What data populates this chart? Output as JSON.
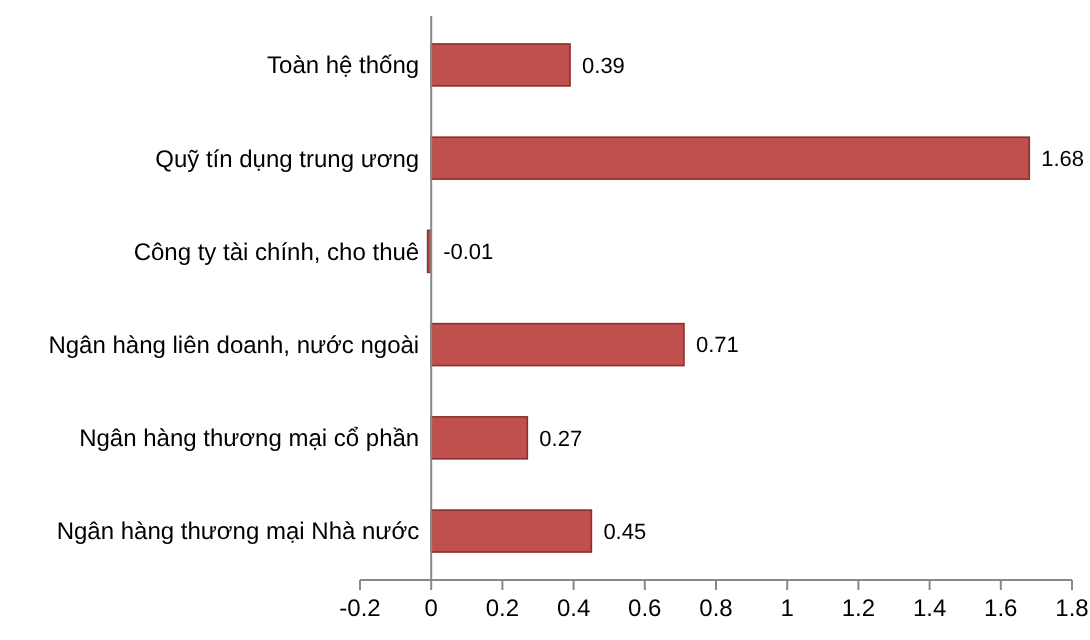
{
  "chart_data": {
    "type": "bar",
    "orientation": "horizontal",
    "categories": [
      "Toàn hệ thống",
      "Quỹ tín dụng trung ương",
      "Công ty tài chính, cho thuê",
      "Ngân hàng liên doanh, nước ngoài",
      "Ngân hàng thương mại cổ phần",
      "Ngân hàng thương mại Nhà nước"
    ],
    "values": [
      0.39,
      1.68,
      -0.01,
      0.71,
      0.27,
      0.45
    ],
    "color": "#c0504d",
    "data_labels": true,
    "grid": false,
    "xlim": [
      -0.2,
      1.8
    ],
    "xticks": [
      -0.2,
      0,
      0.2,
      0.4,
      0.6,
      0.8,
      1,
      1.2,
      1.4,
      1.6,
      1.8
    ]
  }
}
